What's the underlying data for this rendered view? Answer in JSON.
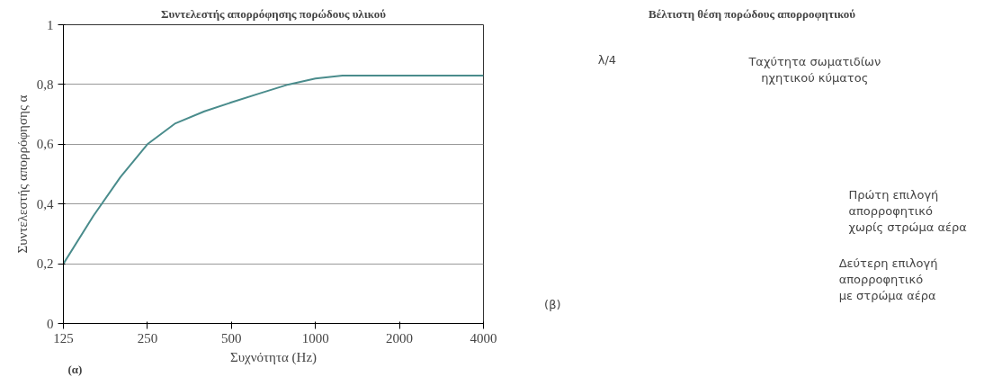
{
  "chart_data": [
    {
      "type": "line",
      "title": "Συντελεστής απορρόφησης πορώδους υλικού",
      "xlabel": "Συχνότητα (Hz)",
      "ylabel": "Συντελεστής απορρόφησης α",
      "log": "x",
      "x": [
        125,
        160,
        200,
        250,
        315,
        400,
        500,
        630,
        800,
        1000,
        1250,
        2000,
        4000
      ],
      "series": [
        {
          "color": "#4a8c8c",
          "values": [
            0.2,
            0.36,
            0.49,
            0.6,
            0.67,
            0.71,
            0.74,
            0.77,
            0.8,
            0.82,
            0.83,
            0.83,
            0.83
          ]
        }
      ],
      "xlim": [
        125,
        4000
      ],
      "xticks": [
        125,
        250,
        500,
        1000,
        2000,
        4000
      ],
      "ylim": [
        0,
        1
      ],
      "yticks": [
        {
          "value": 0,
          "label": "0"
        },
        {
          "value": 0.2,
          "label": "0,2"
        },
        {
          "value": 0.4,
          "label": "0,4"
        },
        {
          "value": 0.6,
          "label": "0,6"
        },
        {
          "value": 0.8,
          "label": "0,8"
        },
        {
          "value": 1,
          "label": "1"
        }
      ],
      "grid": "y",
      "marker": "none",
      "line_style": "solid",
      "annotations": [
        "(α)"
      ]
    },
    {
      "type": "other",
      "title": "Βέλτιστη θέση πορώδους απορροφητικού",
      "annotations": [
        "λ/4",
        "Ταχύτητα σωματιδίων\nηχητικού κύματος",
        "Πρώτη επιλογή\nαπορροφητικό\nχωρίς στρώμα αέρα",
        "Δεύτερη επιλογή\nαπορροφητικό\nμε στρώμα αέρα",
        "(β)"
      ]
    }
  ]
}
